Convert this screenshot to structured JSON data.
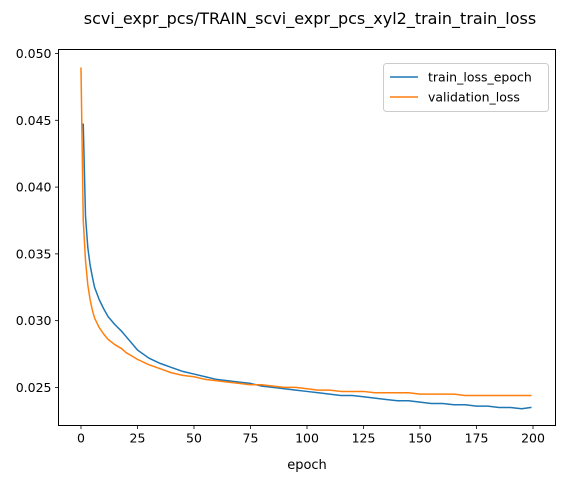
{
  "chart_data": {
    "type": "line",
    "title": "scvi_expr_pcs/TRAIN_scvi_expr_pcs_xyl2_train_train_loss",
    "xlabel": "epoch",
    "ylabel": "",
    "xlim": [
      -9.95,
      209.95
    ],
    "ylim": [
      0.02215,
      0.0503
    ],
    "xticks": [
      0,
      25,
      50,
      75,
      100,
      125,
      150,
      175,
      200
    ],
    "yticks": [
      0.025,
      0.03,
      0.035,
      0.04,
      0.045,
      0.05
    ],
    "ytick_labels": [
      "0.025",
      "0.030",
      "0.035",
      "0.040",
      "0.045",
      "0.050"
    ],
    "grid": false,
    "legend": "top-right",
    "series": [
      {
        "name": "train_loss_epoch",
        "color": "#1f77b4",
        "x": [
          1,
          2,
          3,
          4,
          5,
          6,
          8,
          10,
          12,
          15,
          18,
          20,
          25,
          30,
          35,
          40,
          45,
          50,
          55,
          60,
          65,
          70,
          75,
          80,
          85,
          90,
          95,
          100,
          105,
          110,
          115,
          120,
          125,
          130,
          135,
          140,
          145,
          150,
          155,
          160,
          165,
          170,
          175,
          180,
          185,
          190,
          195,
          199
        ],
        "y": [
          0.0447,
          0.0378,
          0.0355,
          0.0342,
          0.0333,
          0.0325,
          0.0316,
          0.0309,
          0.0303,
          0.0297,
          0.0292,
          0.0288,
          0.0278,
          0.0272,
          0.0268,
          0.0265,
          0.0262,
          0.026,
          0.0258,
          0.0256,
          0.0255,
          0.0254,
          0.0253,
          0.0251,
          0.025,
          0.0249,
          0.0248,
          0.0247,
          0.0246,
          0.0245,
          0.0244,
          0.0244,
          0.0243,
          0.0242,
          0.0241,
          0.024,
          0.024,
          0.0239,
          0.0238,
          0.0238,
          0.0237,
          0.0237,
          0.0236,
          0.0236,
          0.0235,
          0.0235,
          0.0234,
          0.0235
        ]
      },
      {
        "name": "validation_loss",
        "color": "#ff7f0e",
        "x": [
          0,
          1,
          2,
          3,
          4,
          5,
          6,
          8,
          10,
          12,
          15,
          18,
          20,
          25,
          30,
          35,
          40,
          45,
          50,
          55,
          60,
          65,
          70,
          75,
          80,
          85,
          90,
          95,
          100,
          105,
          110,
          115,
          120,
          125,
          130,
          135,
          140,
          145,
          150,
          155,
          160,
          165,
          170,
          175,
          180,
          185,
          190,
          195,
          199
        ],
        "y": [
          0.0489,
          0.0375,
          0.0345,
          0.0327,
          0.0316,
          0.0308,
          0.0302,
          0.0295,
          0.029,
          0.0286,
          0.0282,
          0.0279,
          0.0276,
          0.0271,
          0.0267,
          0.0264,
          0.0261,
          0.0259,
          0.0258,
          0.0256,
          0.0255,
          0.0254,
          0.0253,
          0.0252,
          0.0252,
          0.0251,
          0.025,
          0.025,
          0.0249,
          0.0248,
          0.0248,
          0.0247,
          0.0247,
          0.0247,
          0.0246,
          0.0246,
          0.0246,
          0.0246,
          0.0245,
          0.0245,
          0.0245,
          0.0245,
          0.0244,
          0.0244,
          0.0244,
          0.0244,
          0.0244,
          0.0244,
          0.0244
        ]
      }
    ]
  }
}
